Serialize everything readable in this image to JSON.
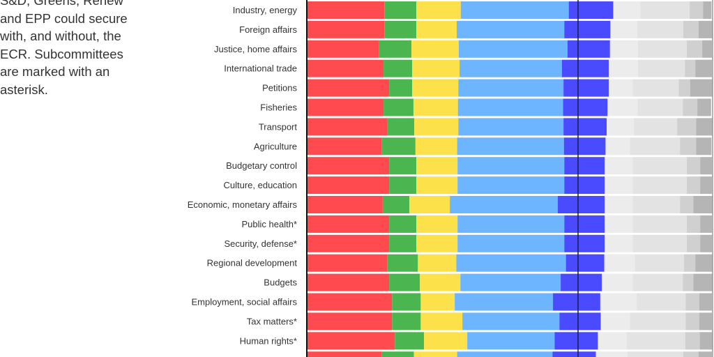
{
  "intro_text": "S&D, Greens, Renew and EPP could secure with, and without, the ECR. Subcommittees are marked with an asterisk.",
  "chart_data": {
    "type": "bar",
    "orientation": "horizontal",
    "stacked": true,
    "xlim": [
      0,
      100
    ],
    "reference_line": 66.9,
    "colors": [
      "#ff4b4f",
      "#4bb64f",
      "#fde14b",
      "#6db6ff",
      "#4a4bff",
      "#ececec",
      "#e3e3e3",
      "#d0d0d0",
      "#b5b5b5"
    ],
    "categories": [
      "Industry, energy",
      "Foreign affairs",
      "Justice, home affairs",
      "International trade",
      "Petitions",
      "Fisheries",
      "Transport",
      "Agriculture",
      "Budgetary control",
      "Culture, education",
      "Economic, monetary affairs",
      "Public health*",
      "Security, defense*",
      "Regional development",
      "Budgets",
      "Employment, social affairs",
      "Tax matters*",
      "Human rights*",
      ""
    ],
    "values": [
      [
        19.0,
        7.9,
        11.0,
        26.7,
        11.0,
        6.7,
        12.2,
        3.3,
        2.1
      ],
      [
        19.0,
        7.9,
        10.0,
        26.6,
        11.4,
        6.6,
        11.4,
        3.8,
        3.4
      ],
      [
        17.6,
        8.1,
        11.7,
        26.9,
        10.5,
        6.9,
        12.1,
        3.8,
        2.4
      ],
      [
        18.8,
        7.1,
        11.7,
        25.3,
        11.6,
        7.2,
        11.6,
        2.6,
        4.1
      ],
      [
        20.2,
        5.7,
        11.4,
        26.0,
        11.2,
        5.9,
        11.4,
        2.8,
        5.5
      ],
      [
        18.8,
        7.4,
        11.0,
        26.0,
        11.0,
        7.4,
        11.2,
        3.6,
        3.4
      ],
      [
        19.8,
        6.6,
        10.9,
        26.0,
        10.7,
        6.7,
        10.7,
        4.7,
        4.0
      ],
      [
        18.4,
        8.3,
        10.3,
        26.4,
        10.3,
        6.0,
        12.4,
        4.0,
        3.8
      ],
      [
        20.2,
        6.7,
        10.2,
        26.4,
        10.0,
        6.9,
        13.4,
        3.3,
        2.9
      ],
      [
        20.2,
        6.7,
        10.2,
        26.4,
        10.0,
        6.9,
        13.4,
        3.3,
        2.9
      ],
      [
        18.6,
        6.6,
        10.0,
        26.7,
        11.6,
        6.9,
        11.7,
        3.3,
        4.7
      ],
      [
        20.2,
        6.7,
        10.2,
        26.4,
        10.0,
        6.9,
        13.4,
        3.3,
        2.9
      ],
      [
        20.2,
        6.7,
        10.2,
        26.4,
        10.0,
        6.9,
        13.4,
        3.3,
        2.9
      ],
      [
        19.7,
        7.6,
        9.5,
        27.1,
        9.5,
        7.6,
        12.1,
        2.8,
        4.3
      ],
      [
        20.2,
        7.6,
        10.0,
        24.8,
        10.2,
        7.6,
        12.4,
        2.6,
        4.7
      ],
      [
        20.9,
        7.1,
        8.4,
        24.3,
        11.7,
        9.0,
        12.1,
        3.4,
        3.1
      ],
      [
        20.9,
        7.1,
        10.3,
        24.0,
        10.2,
        7.2,
        13.8,
        3.4,
        3.1
      ],
      [
        21.6,
        7.2,
        10.7,
        21.6,
        10.7,
        7.1,
        14.5,
        3.6,
        3.1
      ],
      [
        18.4,
        7.9,
        10.7,
        23.6,
        10.7,
        7.8,
        13.8,
        3.8,
        3.3
      ]
    ]
  }
}
